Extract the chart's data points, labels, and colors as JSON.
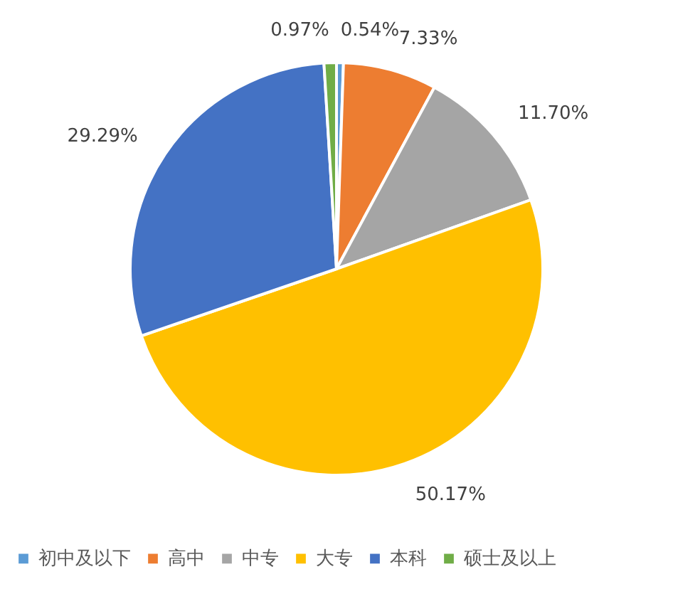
{
  "chart_data": {
    "type": "pie",
    "categories": [
      "初中及以下",
      "高中",
      "中专",
      "大专",
      "本科",
      "硕士及以上"
    ],
    "values": [
      0.54,
      7.33,
      11.7,
      50.17,
      29.29,
      0.97
    ],
    "value_labels": [
      "0.54%",
      "7.33%",
      "11.70%",
      "50.17%",
      "29.29%",
      "0.97%"
    ],
    "colors": [
      "#5b9bd5",
      "#ed7d31",
      "#a5a5a5",
      "#ffc000",
      "#4472c4",
      "#70ad47"
    ],
    "legend": "bottom"
  }
}
